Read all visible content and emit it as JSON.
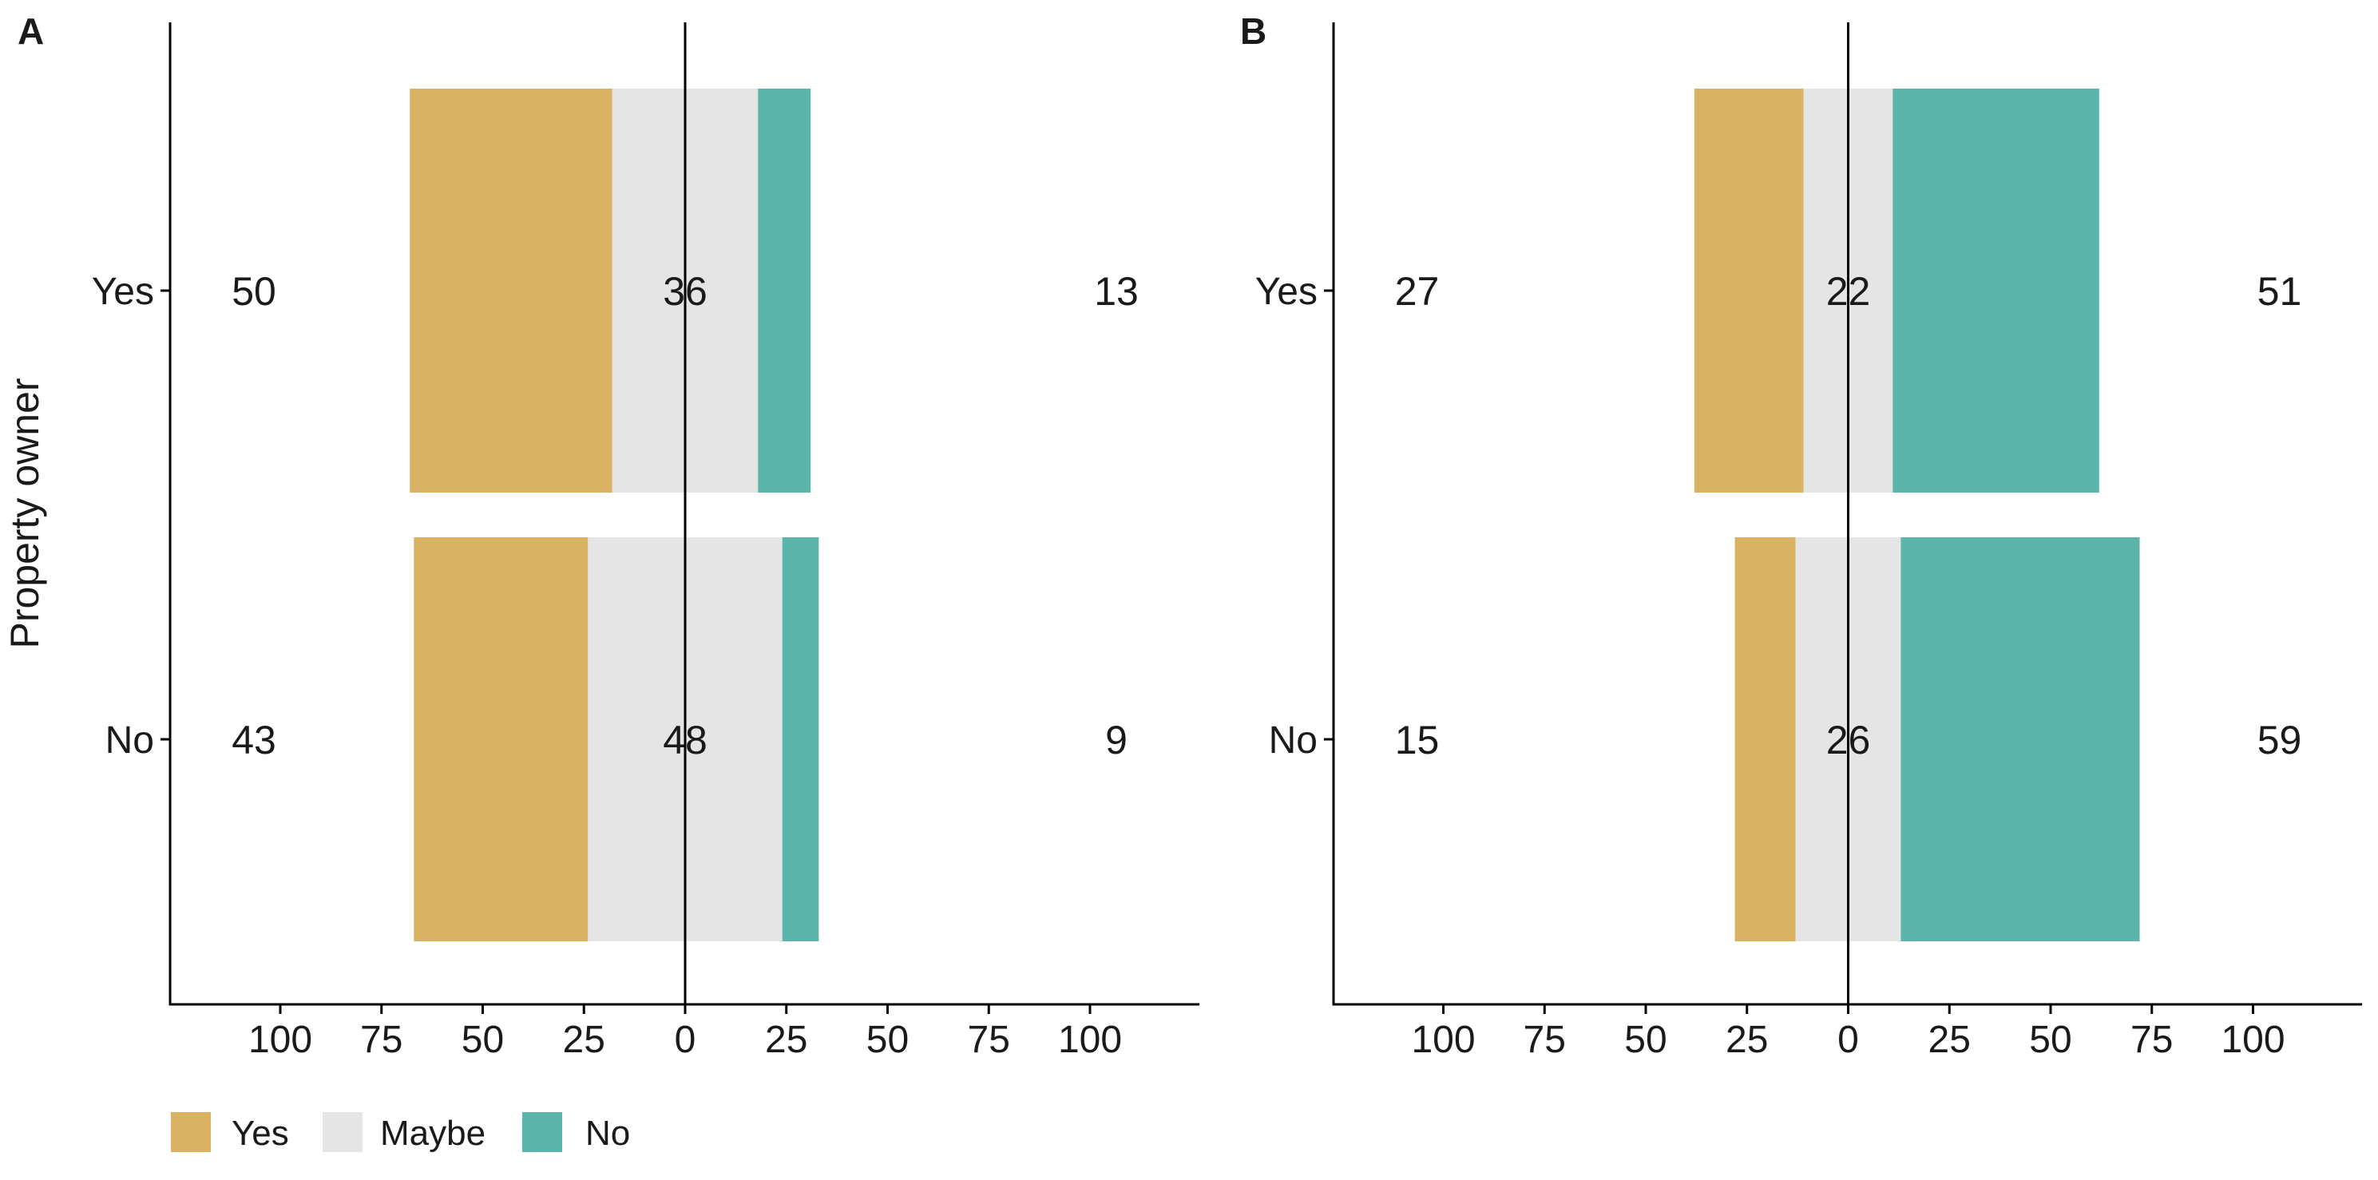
{
  "chart_data": [
    {
      "panel": "A",
      "type": "bar",
      "orientation": "horizontal",
      "stacked": "diverging",
      "ylabel": "Property owner",
      "categories": [
        "Yes",
        "No"
      ],
      "series": [
        {
          "name": "Yes",
          "values": [
            50,
            43
          ]
        },
        {
          "name": "Maybe",
          "values": [
            36,
            48
          ]
        },
        {
          "name": "No",
          "values": [
            13,
            9
          ]
        }
      ],
      "xticks": [
        100,
        75,
        50,
        25,
        0,
        25,
        50,
        75,
        100
      ],
      "xlim": [
        -110,
        110
      ],
      "grid": false
    },
    {
      "panel": "B",
      "type": "bar",
      "orientation": "horizontal",
      "stacked": "diverging",
      "ylabel": "",
      "categories": [
        "Yes",
        "No"
      ],
      "series": [
        {
          "name": "Yes",
          "values": [
            27,
            15
          ]
        },
        {
          "name": "Maybe",
          "values": [
            22,
            26
          ]
        },
        {
          "name": "No",
          "values": [
            51,
            59
          ]
        }
      ],
      "xticks": [
        100,
        75,
        50,
        25,
        0,
        25,
        50,
        75,
        100
      ],
      "xlim": [
        -110,
        110
      ],
      "grid": false
    }
  ],
  "legend": {
    "position": "bottom-left",
    "items": [
      {
        "label": "Yes",
        "color": "#D9B263"
      },
      {
        "label": "Maybe",
        "color": "#E5E5E5"
      },
      {
        "label": "No",
        "color": "#5BB5AB"
      }
    ]
  }
}
